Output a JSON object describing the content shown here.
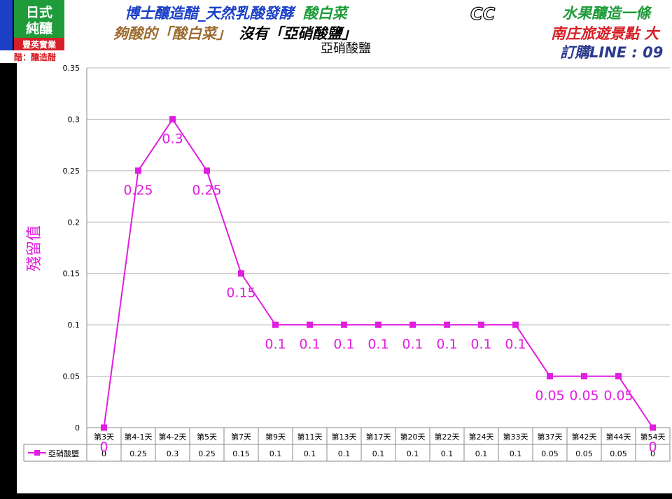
{
  "header": {
    "logo_line1": "日式",
    "logo_line2": "純釀",
    "logo_brand": "豐英實業",
    "logo_sub": "醋：釀造醋",
    "title_line1": "博士釀造醋_天然乳酸發酵",
    "title_line1_tail": "酸白菜",
    "title_cc": "CC",
    "title_right1": "水果釀造一條",
    "title_line2a": "夠酸的「酸白菜」",
    "title_line2b": "沒有「亞硝酸鹽」",
    "title_right2": "南庄旅遊景點 大",
    "title_right3": "訂購LINE : 09",
    "colors": {
      "blue": "#1b40c7",
      "brown": "#9c6b2e",
      "green": "#1f9b3a",
      "red": "#d61f26",
      "navy": "#2a3a8c"
    }
  },
  "chart_data": {
    "type": "line",
    "title": "亞硝酸鹽",
    "ylabel": "殘留值",
    "xlabel": "",
    "categories": [
      "第3天",
      "第4-1天",
      "第4-2天",
      "第5天",
      "第7天",
      "第9天",
      "第11天",
      "第13天",
      "第17天",
      "第20天",
      "第22天",
      "第24天",
      "第33天",
      "第37天",
      "第42天",
      "第44天",
      "第54天"
    ],
    "series": [
      {
        "name": "亞硝酸鹽",
        "values": [
          0,
          0.25,
          0.3,
          0.25,
          0.15,
          0.1,
          0.1,
          0.1,
          0.1,
          0.1,
          0.1,
          0.1,
          0.1,
          0.05,
          0.05,
          0.05,
          0
        ],
        "color": "#e01ee0"
      }
    ],
    "data_labels": [
      "0",
      "0.25",
      "0.3",
      "0.25",
      "0.15",
      "0.1",
      "0.1",
      "0.1",
      "0.1",
      "0.1",
      "0.1",
      "0.1",
      "0.1",
      "0.05",
      "0.05",
      "0.05",
      "0"
    ],
    "table_values": [
      "0",
      "0.25",
      "0.3",
      "0.25",
      "0.15",
      "0.1",
      "0.1",
      "0.1",
      "0.1",
      "0.1",
      "0.1",
      "0.1",
      "0.1",
      "0.05",
      "0.05",
      "0.05",
      "0"
    ],
    "yticks": [
      "0",
      "0.05",
      "0.1",
      "0.15",
      "0.2",
      "0.25",
      "0.3",
      "0.35"
    ],
    "ylim": [
      0,
      0.35
    ],
    "grid": true,
    "legend": "data-table"
  }
}
